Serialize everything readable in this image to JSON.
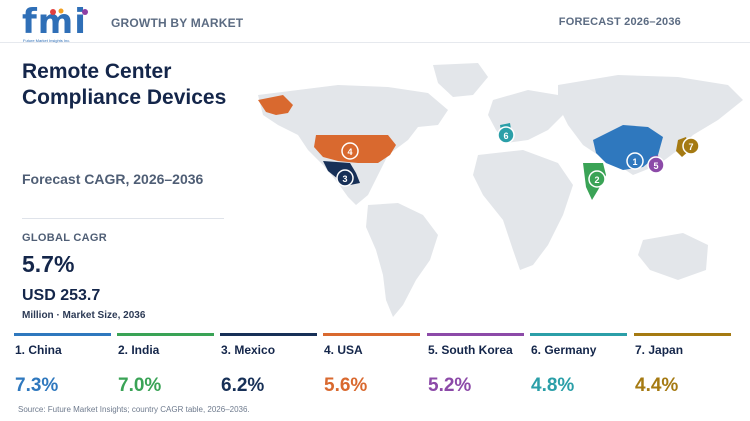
{
  "logo": {
    "text": "fmi",
    "subtitle": "Future Market Insights Inc."
  },
  "header": {
    "left": "GROWTH BY MARKET",
    "right": "FORECAST 2026–2036"
  },
  "title": "Remote Center Compliance Devices",
  "cagr_label": "Forecast CAGR, 2026–2036",
  "global": {
    "label": "GLOBAL CAGR",
    "value": "5.7%",
    "market_size": "USD 253.7",
    "market_note": "Million · Market Size, 2036"
  },
  "countries": [
    {
      "rank": "1",
      "name": "1. China",
      "cagr": "7.3%",
      "color": "#2f78be"
    },
    {
      "rank": "2",
      "name": "2. India",
      "cagr": "7.0%",
      "color": "#3aa356"
    },
    {
      "rank": "3",
      "name": "3. Mexico",
      "cagr": "6.2%",
      "color": "#173057"
    },
    {
      "rank": "4",
      "name": "4. USA",
      "cagr": "5.6%",
      "color": "#d9692f"
    },
    {
      "rank": "5",
      "name": "5. South Korea",
      "cagr": "5.2%",
      "color": "#8c4aa8"
    },
    {
      "rank": "6",
      "name": "6. Germany",
      "cagr": "4.8%",
      "color": "#2b9fa8"
    },
    {
      "rank": "7",
      "name": "7. Japan",
      "cagr": "4.4%",
      "color": "#a57a12"
    }
  ],
  "map_markers": [
    "1",
    "2",
    "3",
    "4",
    "5",
    "6",
    "7"
  ],
  "source": "Source: Future Market Insights; country CAGR table, 2026–2036."
}
